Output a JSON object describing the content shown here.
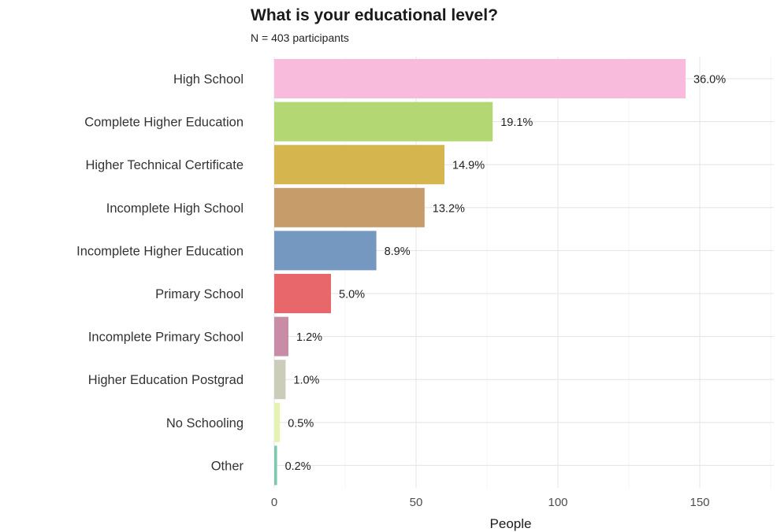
{
  "chart_data": {
    "type": "bar",
    "orientation": "horizontal",
    "title": "What is your educational level?",
    "subtitle": "N = 403 participants",
    "xlabel": "People",
    "ylabel": "",
    "xlim": [
      0,
      175
    ],
    "x_ticks": [
      0,
      50,
      100,
      150
    ],
    "grid": true,
    "legend": "none",
    "categories": [
      "High School",
      "Complete Higher Education",
      "Higher Technical Certificate",
      "Incomplete High School",
      "Incomplete Higher Education",
      "Primary School",
      "Incomplete Primary School",
      "Higher Education Postgrad",
      "No Schooling",
      "Other"
    ],
    "values": [
      145,
      77,
      60,
      53,
      36,
      20,
      5,
      4,
      2,
      1
    ],
    "labels": [
      "36.0%",
      "19.1%",
      "14.9%",
      "13.2%",
      "8.9%",
      "5.0%",
      "1.2%",
      "1.0%",
      "0.5%",
      "0.2%"
    ],
    "colors": [
      "#F8BBDB",
      "#B3D772",
      "#D4B54E",
      "#C79C6B",
      "#7498BF",
      "#E8676A",
      "#C98CA6",
      "#CBCCBA",
      "#E5F3B2",
      "#7FC8B0"
    ]
  }
}
